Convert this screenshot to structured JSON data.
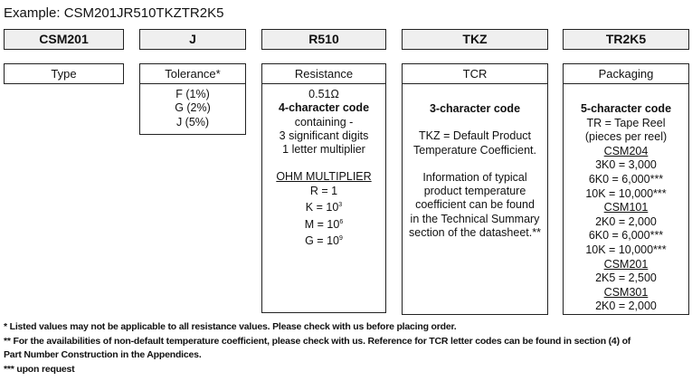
{
  "example": "Example: CSM201JR510TKZTR2K5",
  "codes": [
    "CSM201",
    "J",
    "R510",
    "TKZ",
    "TR2K5"
  ],
  "labels": [
    "Type",
    "Tolerance*",
    "Resistance",
    "TCR",
    "Packaging"
  ],
  "tolerance": [
    "F (1%)",
    "G (2%)",
    "J (5%)"
  ],
  "resistance": {
    "example": "0.51Ω",
    "heading": "4-character code",
    "lines": [
      "containing -",
      "3 significant digits",
      "1 letter multiplier"
    ],
    "multiplier_title": "OHM MULTIPLIER",
    "multipliers": [
      {
        "base": "R = 1",
        "exp": ""
      },
      {
        "base": "K = 10",
        "exp": "3"
      },
      {
        "base": "M = 10",
        "exp": "6"
      },
      {
        "base": "G = 10",
        "exp": "9"
      }
    ]
  },
  "tcr": {
    "heading": "3-character code",
    "default": [
      "TKZ = Default Product",
      "Temperature Coefficient."
    ],
    "info": [
      "Information of typical",
      "product temperature",
      "coefficient can be found",
      "in the Technical Summary",
      "section of the datasheet.**"
    ]
  },
  "packaging": {
    "heading": "5-character code",
    "intro": [
      "TR = Tape Reel",
      "(pieces per reel)"
    ],
    "groups": [
      {
        "type": "CSM204",
        "options": [
          "3K0 = 3,000",
          "6K0 = 6,000***",
          "10K = 10,000***"
        ]
      },
      {
        "type": "CSM101",
        "options": [
          "2K0 = 2,000",
          "6K0 = 6,000***",
          "10K = 10,000***"
        ]
      },
      {
        "type": "CSM201",
        "options": [
          "2K5 = 2,500"
        ]
      },
      {
        "type": "CSM301",
        "options": [
          "2K0 = 2,000"
        ]
      }
    ]
  },
  "footnotes": [
    "* Listed values may not be applicable to all resistance values. Please check with us before placing order.",
    "** For the availabilities of non-default temperature coefficient, please check with us. Reference for TCR letter codes can be found in section (4) of",
    "Part Number Construction in the Appendices.",
    "*** upon request"
  ]
}
